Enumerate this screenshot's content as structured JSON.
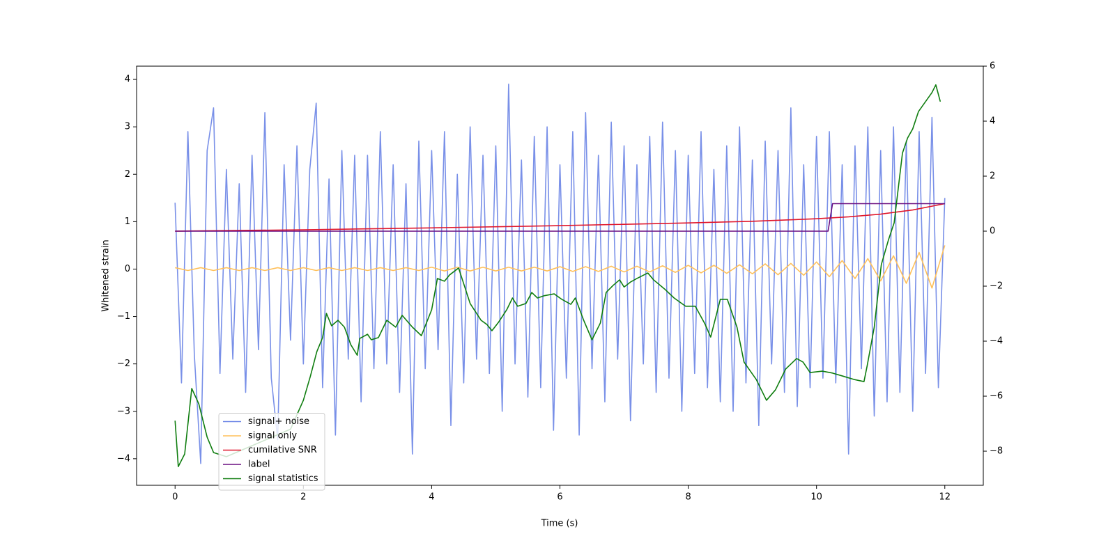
{
  "chart_data": {
    "type": "line",
    "xlabel": "Time (s)",
    "ylabel": "Whitened strain",
    "xlim": [
      -0.6,
      12.6
    ],
    "ylim": [
      -4.56,
      4.28
    ],
    "y2lim": [
      -9.24,
      6
    ],
    "xticks": [
      0,
      2,
      4,
      6,
      8,
      10,
      12
    ],
    "yticks": [
      {
        "value": -4,
        "label": "−4"
      },
      {
        "value": -3,
        "label": "−3"
      },
      {
        "value": -2,
        "label": "−2"
      },
      {
        "value": -1,
        "label": "−1"
      },
      0,
      1,
      2,
      3,
      4
    ],
    "y2ticks": [
      {
        "value": -8,
        "label": "−8"
      },
      {
        "value": -6,
        "label": "−6"
      },
      {
        "value": -4,
        "label": "−4"
      },
      {
        "value": -2,
        "label": "−2"
      },
      0,
      2,
      4,
      6
    ],
    "legend": "lower left",
    "series": [
      {
        "name": "signal+ noise",
        "color": "#6a84e6",
        "x": [
          0,
          0.1,
          0.2,
          0.3,
          0.4,
          0.5,
          0.6,
          0.7,
          0.8,
          0.9,
          1,
          1.1,
          1.2,
          1.3,
          1.4,
          1.5,
          1.6,
          1.7,
          1.8,
          1.9,
          2,
          2.1,
          2.2,
          2.3,
          2.4,
          2.5,
          2.6,
          2.7,
          2.8,
          2.9,
          3,
          3.1,
          3.2,
          3.3,
          3.4,
          3.5,
          3.6,
          3.7,
          3.8,
          3.9,
          4,
          4.1,
          4.2,
          4.3,
          4.4,
          4.5,
          4.6,
          4.7,
          4.8,
          4.9,
          5,
          5.1,
          5.2,
          5.3,
          5.4,
          5.5,
          5.6,
          5.7,
          5.8,
          5.9,
          6,
          6.1,
          6.2,
          6.3,
          6.4,
          6.5,
          6.6,
          6.7,
          6.8,
          6.9,
          7,
          7.1,
          7.2,
          7.3,
          7.4,
          7.5,
          7.6,
          7.7,
          7.8,
          7.9,
          8,
          8.1,
          8.2,
          8.3,
          8.4,
          8.5,
          8.6,
          8.7,
          8.8,
          8.9,
          9,
          9.1,
          9.2,
          9.3,
          9.4,
          9.5,
          9.6,
          9.7,
          9.8,
          9.9,
          10,
          10.1,
          10.2,
          10.3,
          10.4,
          10.5,
          10.6,
          10.7,
          10.8,
          10.9,
          11,
          11.1,
          11.2,
          11.3,
          11.4,
          11.5,
          11.6,
          11.7,
          11.8,
          11.9,
          12
        ],
        "values": [
          1.4,
          -2.4,
          2.9,
          -1.8,
          -4.1,
          2.5,
          3.4,
          -2.2,
          2.1,
          -1.9,
          1.8,
          -2.6,
          2.4,
          -1.7,
          3.3,
          -2.3,
          -3.6,
          2.2,
          -1.5,
          2.6,
          -2.0,
          2.1,
          3.5,
          -2.5,
          1.9,
          -3.5,
          2.5,
          -1.9,
          2.4,
          -2.8,
          2.4,
          -2.1,
          2.9,
          -2.0,
          2.2,
          -2.6,
          1.8,
          -3.9,
          2.7,
          -2.1,
          2.5,
          -1.7,
          2.9,
          -3.3,
          2.0,
          -2.4,
          3.0,
          -1.9,
          2.4,
          -2.2,
          2.6,
          -3.0,
          3.9,
          -2.0,
          2.3,
          -2.7,
          2.8,
          -2.5,
          3.0,
          -3.4,
          2.2,
          -2.3,
          2.9,
          -3.5,
          3.3,
          -2.1,
          2.4,
          -2.8,
          3.1,
          -1.9,
          2.6,
          -3.2,
          2.2,
          -2.0,
          2.8,
          -2.6,
          3.1,
          -2.3,
          2.5,
          -3.0,
          2.4,
          -2.2,
          2.9,
          -2.5,
          2.1,
          -2.8,
          2.6,
          -3.0,
          3.0,
          -2.4,
          2.3,
          -3.3,
          2.7,
          -2.0,
          2.5,
          -2.6,
          3.4,
          -2.9,
          2.2,
          -2.5,
          2.8,
          -2.3,
          2.9,
          -2.4,
          2.2,
          -3.9,
          2.6,
          -2.1,
          3.0,
          -3.1,
          2.5,
          -2.8,
          3.0,
          -2.6,
          2.7,
          -3.0,
          2.9,
          -2.2,
          3.2,
          -2.5,
          1.5
        ]
      },
      {
        "name": "signal only",
        "color": "#ffc05a",
        "x": [
          0,
          0.2,
          0.4,
          0.6,
          0.8,
          1,
          1.2,
          1.4,
          1.6,
          1.8,
          2,
          2.2,
          2.4,
          2.6,
          2.8,
          3,
          3.2,
          3.4,
          3.6,
          3.8,
          4,
          4.2,
          4.4,
          4.6,
          4.8,
          5,
          5.2,
          5.4,
          5.6,
          5.8,
          6,
          6.2,
          6.4,
          6.6,
          6.8,
          7,
          7.2,
          7.4,
          7.6,
          7.8,
          8,
          8.2,
          8.4,
          8.6,
          8.8,
          9,
          9.2,
          9.4,
          9.6,
          9.8,
          10,
          10.2,
          10.4,
          10.6,
          10.8,
          11,
          11.2,
          11.4,
          11.6,
          11.8,
          12
        ],
        "values": [
          0.03,
          -0.03,
          0.03,
          -0.03,
          0.03,
          -0.03,
          0.03,
          -0.03,
          0.03,
          -0.03,
          0.03,
          -0.03,
          0.03,
          -0.03,
          0.03,
          -0.03,
          0.03,
          -0.03,
          0.03,
          -0.03,
          0.04,
          -0.04,
          0.04,
          -0.04,
          0.04,
          -0.04,
          0.04,
          -0.04,
          0.04,
          -0.04,
          0.05,
          -0.05,
          0.05,
          -0.05,
          0.06,
          -0.06,
          0.06,
          -0.06,
          0.07,
          -0.07,
          0.08,
          -0.08,
          0.08,
          -0.09,
          0.09,
          -0.1,
          0.11,
          -0.12,
          0.12,
          -0.13,
          0.15,
          -0.16,
          0.18,
          -0.2,
          0.22,
          -0.25,
          0.28,
          -0.3,
          0.35,
          -0.4,
          0.5
        ]
      },
      {
        "name": "cumilative SNR",
        "color": "#e0162b",
        "axis": "y2",
        "x": [
          0,
          2,
          4,
          6,
          8,
          9,
          10,
          10.5,
          11,
          11.5,
          12
        ],
        "values": [
          0,
          0.05,
          0.12,
          0.2,
          0.3,
          0.36,
          0.45,
          0.52,
          0.62,
          0.77,
          1
        ]
      },
      {
        "name": "label",
        "color": "#6a0f80",
        "axis": "y2",
        "x": [
          0,
          10.18,
          10.25,
          12
        ],
        "values": [
          0,
          0,
          1,
          1
        ]
      },
      {
        "name": "signal statistics",
        "color": "#0f7d0f",
        "axis": "y2",
        "x": [
          0,
          0.05,
          0.15,
          0.26,
          0.37,
          0.5,
          0.6,
          0.8,
          1,
          1.2,
          1.5,
          1.8,
          2,
          2.11,
          2.21,
          2.3,
          2.36,
          2.44,
          2.54,
          2.64,
          2.74,
          2.84,
          2.88,
          3,
          3.06,
          3.17,
          3.3,
          3.44,
          3.54,
          3.7,
          3.84,
          4,
          4.09,
          4.2,
          4.28,
          4.42,
          4.6,
          4.77,
          4.86,
          4.94,
          5.04,
          5.17,
          5.26,
          5.34,
          5.47,
          5.56,
          5.65,
          5.75,
          5.91,
          6.03,
          6.17,
          6.24,
          6.37,
          6.5,
          6.63,
          6.72,
          6.83,
          6.93,
          7,
          7.1,
          7.2,
          7.37,
          7.46,
          7.63,
          7.78,
          7.96,
          8.11,
          8.26,
          8.35,
          8.5,
          8.61,
          8.76,
          8.87,
          9.06,
          9.22,
          9.36,
          9.52,
          9.69,
          9.79,
          9.9,
          10.09,
          10.25,
          10.41,
          10.58,
          10.74,
          10.79,
          10.9,
          11.01,
          11.12,
          11.21,
          11.34,
          11.42,
          11.5,
          11.59,
          11.8,
          11.86,
          11.93
        ],
        "values": [
          -6.89,
          -8.56,
          -8.1,
          -5.72,
          -6.28,
          -7.49,
          -8.05,
          -8.2,
          -8.0,
          -7.8,
          -7.5,
          -7.2,
          -6.15,
          -5.27,
          -4.38,
          -3.87,
          -2.99,
          -3.44,
          -3.24,
          -3.49,
          -4.13,
          -4.51,
          -3.9,
          -3.75,
          -3.95,
          -3.87,
          -3.24,
          -3.49,
          -3.06,
          -3.49,
          -3.8,
          -2.86,
          -1.72,
          -1.82,
          -1.59,
          -1.34,
          -2.63,
          -3.24,
          -3.39,
          -3.62,
          -3.32,
          -2.86,
          -2.43,
          -2.73,
          -2.63,
          -2.23,
          -2.43,
          -2.35,
          -2.28,
          -2.48,
          -2.66,
          -2.43,
          -3.24,
          -3.95,
          -3.34,
          -2.23,
          -1.97,
          -1.77,
          -2.03,
          -1.85,
          -1.72,
          -1.52,
          -1.77,
          -2.1,
          -2.43,
          -2.73,
          -2.73,
          -3.37,
          -3.85,
          -2.48,
          -2.48,
          -3.49,
          -4.76,
          -5.39,
          -6.15,
          -5.77,
          -5.01,
          -4.63,
          -4.76,
          -5.14,
          -5.09,
          -5.16,
          -5.27,
          -5.39,
          -5.47,
          -4.89,
          -3.49,
          -1.22,
          -0.33,
          0.3,
          2.84,
          3.39,
          3.72,
          4.35,
          5.04,
          5.32,
          4.71
        ]
      }
    ]
  }
}
